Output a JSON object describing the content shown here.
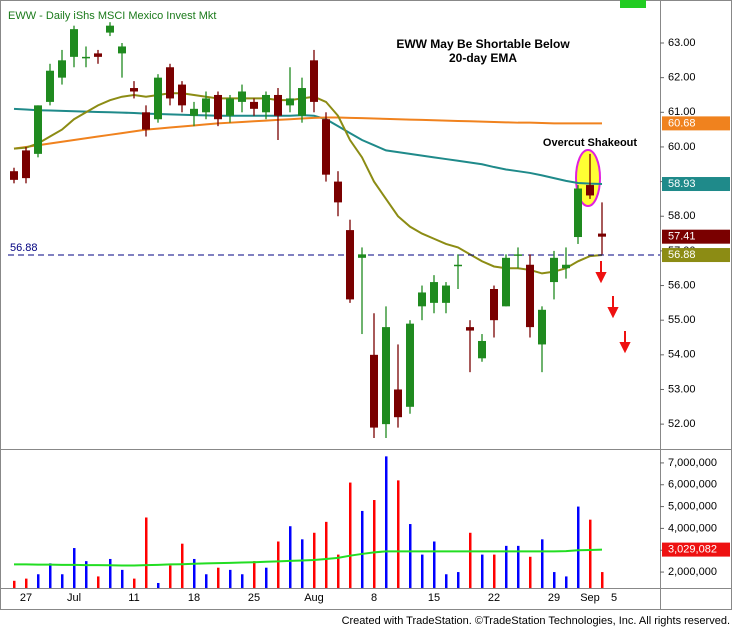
{
  "header": "EWW - Daily  iShs MSCI Mexico Invest Mkt",
  "footer": "Created with TradeStation. ©TradeStation Technologies, Inc. All rights reserved.",
  "chart_data": [
    {
      "type": "candlestick",
      "title": "EWW May Be Shortable Below",
      "subtitle": "20-day EMA",
      "annotation": "Overcut Shakeout",
      "categories": [
        null,
        "27",
        null,
        null,
        null,
        "Jul",
        null,
        null,
        null,
        null,
        "11",
        null,
        null,
        null,
        null,
        "18",
        null,
        null,
        null,
        null,
        "25",
        null,
        null,
        null,
        null,
        "Aug",
        null,
        null,
        null,
        null,
        "8",
        null,
        null,
        null,
        null,
        "15",
        null,
        null,
        null,
        null,
        "22",
        null,
        null,
        null,
        null,
        "29",
        null,
        null,
        "Sep",
        null,
        "5"
      ],
      "open": [
        59.3,
        59.9,
        59.8,
        61.3,
        62.0,
        62.6,
        62.6,
        62.7,
        63.3,
        62.7,
        61.7,
        61.0,
        60.8,
        62.3,
        61.8,
        60.9,
        61.0,
        61.5,
        60.9,
        61.3,
        61.3,
        61.0,
        61.5,
        61.2,
        60.9,
        62.5,
        60.8,
        59.0,
        57.6,
        56.8,
        54.0,
        52.0,
        53.0,
        52.5,
        55.4,
        55.5,
        55.5,
        56.6,
        54.8,
        53.9,
        55.9,
        55.4,
        56.9,
        56.6,
        54.3,
        56.1,
        56.5,
        57.4,
        58.9,
        57.5,
        null
      ],
      "high": [
        59.4,
        60.0,
        61.2,
        62.4,
        62.8,
        63.5,
        62.9,
        62.8,
        63.6,
        63.0,
        61.9,
        61.2,
        62.1,
        62.4,
        61.9,
        61.3,
        61.6,
        61.6,
        61.5,
        61.8,
        61.4,
        61.6,
        61.7,
        62.3,
        62.0,
        62.8,
        61.0,
        59.3,
        57.9,
        57.1,
        55.2,
        55.4,
        54.3,
        55.0,
        56.0,
        56.3,
        56.1,
        56.9,
        55.0,
        54.6,
        56.0,
        56.9,
        57.1,
        56.9,
        55.4,
        57.0,
        57.1,
        58.9,
        59.8,
        58.4,
        null
      ],
      "low": [
        58.95,
        58.95,
        59.7,
        61.2,
        61.8,
        62.3,
        62.3,
        62.4,
        63.2,
        62.0,
        61.4,
        60.3,
        60.7,
        61.2,
        61.0,
        60.6,
        60.8,
        60.6,
        60.7,
        61.0,
        60.9,
        60.8,
        60.2,
        61.0,
        60.7,
        61.0,
        59.0,
        58.0,
        55.5,
        54.6,
        51.6,
        51.6,
        51.9,
        52.3,
        55.0,
        55.2,
        55.2,
        55.9,
        53.5,
        53.8,
        54.5,
        55.4,
        56.5,
        54.5,
        53.5,
        55.6,
        56.2,
        57.2,
        58.5,
        56.9,
        null
      ],
      "close": [
        59.05,
        59.1,
        61.2,
        62.2,
        62.5,
        63.4,
        62.6,
        62.6,
        63.5,
        62.9,
        61.6,
        60.5,
        62.0,
        61.4,
        61.2,
        61.1,
        61.4,
        60.8,
        61.4,
        61.6,
        61.1,
        61.5,
        60.9,
        61.4,
        61.7,
        61.3,
        59.2,
        58.4,
        55.6,
        56.9,
        51.9,
        54.8,
        52.2,
        54.9,
        55.8,
        56.1,
        56.0,
        56.6,
        54.7,
        54.4,
        55.0,
        56.8,
        56.9,
        54.8,
        55.3,
        56.8,
        56.6,
        58.8,
        58.6,
        57.41,
        null
      ],
      "close_label": "57.41",
      "up_color": "#1f8a1f",
      "down_color": "#7a0000",
      "lines": [
        {
          "color": "#1f8a8a",
          "last_label": "58.93",
          "values": [
            61.1,
            61.08,
            61.06,
            61.05,
            61.04,
            61.03,
            61.02,
            61.01,
            61.0,
            60.99,
            60.98,
            60.96,
            60.95,
            60.94,
            60.93,
            60.92,
            60.91,
            60.9,
            60.9,
            60.9,
            60.9,
            60.9,
            60.9,
            60.9,
            60.92,
            60.9,
            60.8,
            60.6,
            60.4,
            60.2,
            60.05,
            59.9,
            59.85,
            59.8,
            59.75,
            59.7,
            59.65,
            59.6,
            59.55,
            59.5,
            59.42,
            59.35,
            59.3,
            59.25,
            59.18,
            59.1,
            59.02,
            58.96,
            58.94,
            58.93,
            null
          ]
        },
        {
          "color": "#f0821e",
          "last_label": "60.68",
          "values": [
            59.95,
            60.0,
            60.05,
            60.1,
            60.15,
            60.2,
            60.25,
            60.3,
            60.35,
            60.4,
            60.45,
            60.5,
            60.53,
            60.56,
            60.59,
            60.62,
            60.65,
            60.68,
            60.7,
            60.72,
            60.74,
            60.76,
            60.78,
            60.8,
            60.82,
            60.84,
            60.85,
            60.85,
            60.84,
            60.83,
            60.82,
            60.81,
            60.8,
            60.79,
            60.78,
            60.77,
            60.76,
            60.75,
            60.74,
            60.73,
            60.72,
            60.71,
            60.7,
            60.7,
            60.69,
            60.68,
            60.68,
            60.68,
            60.68,
            60.68,
            null
          ]
        },
        {
          "color": "#8c8c14",
          "last_label": "56.88",
          "values": [
            59.95,
            59.98,
            60.1,
            60.3,
            60.5,
            60.8,
            61.0,
            61.2,
            61.35,
            61.45,
            61.5,
            61.45,
            61.5,
            61.55,
            61.55,
            61.5,
            61.45,
            61.4,
            61.4,
            61.4,
            61.4,
            61.4,
            61.35,
            61.35,
            61.4,
            61.45,
            61.3,
            60.9,
            60.2,
            59.7,
            59.0,
            58.5,
            58.0,
            57.7,
            57.5,
            57.35,
            57.2,
            57.1,
            56.9,
            56.7,
            56.55,
            56.5,
            56.5,
            56.45,
            56.35,
            56.4,
            56.5,
            56.7,
            56.85,
            56.88,
            null
          ]
        }
      ],
      "hline": {
        "value": 56.88,
        "label": "56.88",
        "color": "#000080"
      },
      "ylim": [
        51.34,
        64.01
      ],
      "yticks": [
        {
          "value": 52,
          "label": "52.00"
        },
        {
          "value": 53,
          "label": "53.00"
        },
        {
          "value": 54,
          "label": "54.00"
        },
        {
          "value": 55,
          "label": "55.00"
        },
        {
          "value": 56,
          "label": "56.00"
        },
        {
          "value": 57,
          "label": "57.00"
        },
        {
          "value": 58,
          "label": "58.00"
        },
        {
          "value": 59,
          "label": "59.00"
        },
        {
          "value": 60,
          "label": "60.00"
        },
        {
          "value": 61,
          "label": "61.00"
        },
        {
          "value": 62,
          "label": "62.00"
        },
        {
          "value": 63,
          "label": "63.00"
        }
      ]
    },
    {
      "type": "bar",
      "values": [
        1600000,
        1700000,
        1900000,
        2400000,
        1900000,
        3100000,
        2500000,
        1800000,
        2600000,
        2100000,
        1700000,
        4500000,
        1500000,
        2300000,
        3300000,
        2600000,
        1900000,
        2200000,
        2100000,
        1900000,
        2500000,
        2200000,
        3400000,
        4100000,
        3500000,
        3800000,
        4300000,
        2800000,
        6100000,
        4800000,
        5300000,
        7300000,
        6200000,
        4200000,
        2800000,
        3400000,
        1900000,
        2000000,
        3800000,
        2800000,
        2800000,
        3200000,
        3200000,
        2700000,
        3500000,
        2000000,
        1800000,
        5000000,
        4400000,
        2000000,
        null
      ],
      "up_color": "#0000ff",
      "down_color": "#ff0000",
      "average": {
        "color": "#22dd22",
        "last_label": "3,029,082",
        "values": [
          2350000,
          2350000,
          2340000,
          2340000,
          2330000,
          2330000,
          2320000,
          2320000,
          2310000,
          2300000,
          2300000,
          2320000,
          2330000,
          2350000,
          2360000,
          2380000,
          2400000,
          2410000,
          2420000,
          2440000,
          2450000,
          2470000,
          2490000,
          2510000,
          2530000,
          2550000,
          2600000,
          2650000,
          2750000,
          2830000,
          2900000,
          2950000,
          2950000,
          2950000,
          2950000,
          2950000,
          2950000,
          2950000,
          2950000,
          2950000,
          2950000,
          2950000,
          2950000,
          2950000,
          2950000,
          2950000,
          2960000,
          3000000,
          3010000,
          3029082,
          null
        ]
      },
      "ylim": [
        1270000,
        7500000
      ],
      "yticks": [
        {
          "value": 2000000,
          "label": "2,000,000"
        },
        {
          "value": 3000000,
          "label": "3,000,000"
        },
        {
          "value": 4000000,
          "label": "4,000,000"
        },
        {
          "value": 5000000,
          "label": "5,000,000"
        },
        {
          "value": 6000000,
          "label": "6,000,000"
        },
        {
          "value": 7000000,
          "label": "7,000,000"
        }
      ]
    }
  ]
}
